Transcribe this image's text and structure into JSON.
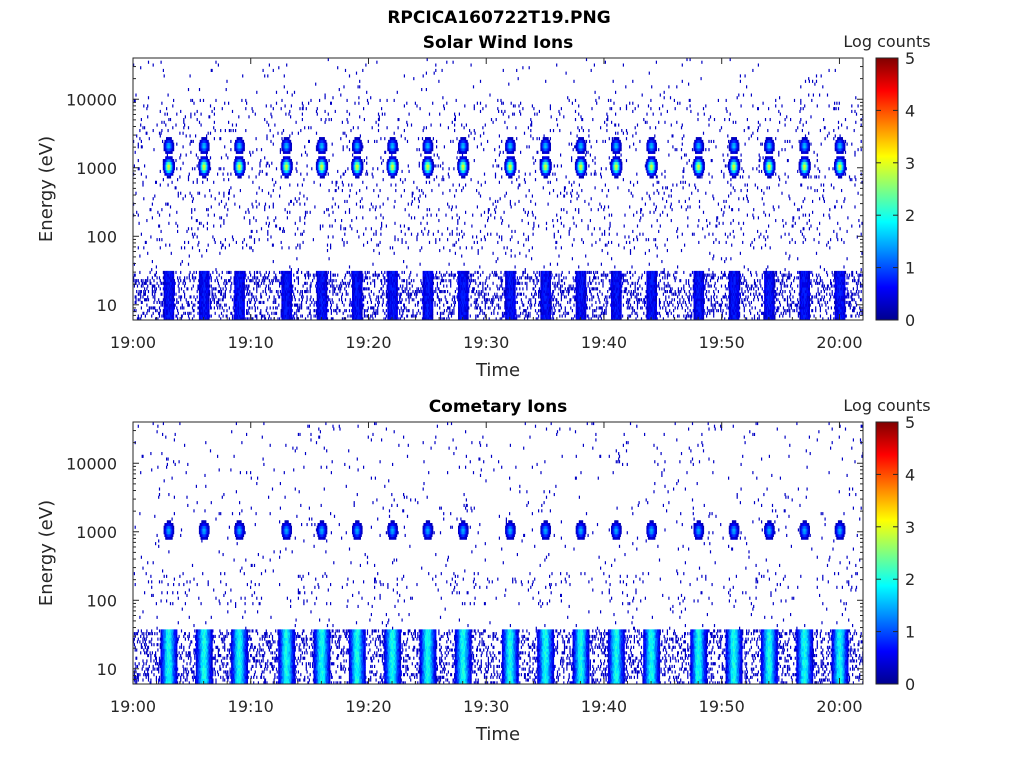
{
  "figure": {
    "filename": "RPCICA160722T19.PNG"
  },
  "colormap": [
    "#00008f",
    "#0000ff",
    "#0080ff",
    "#00ffff",
    "#80ff80",
    "#ffff00",
    "#ff8000",
    "#ff0000",
    "#800000"
  ],
  "chart_data": [
    {
      "type": "heatmap",
      "title": "Solar Wind Ions",
      "xlabel": "Time",
      "ylabel": "Energy (eV)",
      "yscale": "log",
      "xlim": [
        "19:00",
        "20:02"
      ],
      "ylim": [
        6,
        40000
      ],
      "x_tick_labels": [
        "19:00",
        "19:10",
        "19:20",
        "19:30",
        "19:40",
        "19:50",
        "20:00"
      ],
      "y_tick_labels": [
        "10",
        "100",
        "1000",
        "10000"
      ],
      "colorbar": {
        "label": "Log counts",
        "range": [
          0,
          5
        ],
        "tick_labels": [
          "0",
          "1",
          "2",
          "3",
          "4",
          "5"
        ]
      },
      "features": {
        "scan_peak_times": [
          "19:03",
          "19:06",
          "19:09",
          "19:13",
          "19:16",
          "19:19",
          "19:22",
          "19:25",
          "19:28",
          "19:32",
          "19:35",
          "19:38",
          "19:41",
          "19:44",
          "19:48",
          "19:51",
          "19:54",
          "19:57",
          "20:00"
        ],
        "peak_energy_eV": 1000,
        "peak_log_counts": 3.0,
        "secondary_energy_eV": 2000,
        "secondary_log_counts": 1.6,
        "low_energy_band_eV": [
          6,
          30
        ],
        "low_energy_log_counts": 0.5,
        "background_log_counts": 0.3
      }
    },
    {
      "type": "heatmap",
      "title": "Cometary Ions",
      "xlabel": "Time",
      "ylabel": "Energy (eV)",
      "yscale": "log",
      "xlim": [
        "19:00",
        "20:02"
      ],
      "ylim": [
        6,
        40000
      ],
      "x_tick_labels": [
        "19:00",
        "19:10",
        "19:20",
        "19:30",
        "19:40",
        "19:50",
        "20:00"
      ],
      "y_tick_labels": [
        "10",
        "100",
        "1000",
        "10000"
      ],
      "colorbar": {
        "label": "Log counts",
        "range": [
          0,
          5
        ],
        "tick_labels": [
          "0",
          "1",
          "2",
          "3",
          "4",
          "5"
        ]
      },
      "features": {
        "scan_peak_times": [
          "19:03",
          "19:06",
          "19:09",
          "19:13",
          "19:16",
          "19:19",
          "19:22",
          "19:25",
          "19:28",
          "19:32",
          "19:35",
          "19:38",
          "19:41",
          "19:44",
          "19:48",
          "19:51",
          "19:54",
          "19:57",
          "20:00"
        ],
        "peak_energy_eV": 1000,
        "peak_log_counts": 1.5,
        "low_energy_band_eV": [
          6,
          35
        ],
        "low_energy_log_counts": 1.8,
        "background_log_counts": 0.3
      }
    }
  ]
}
